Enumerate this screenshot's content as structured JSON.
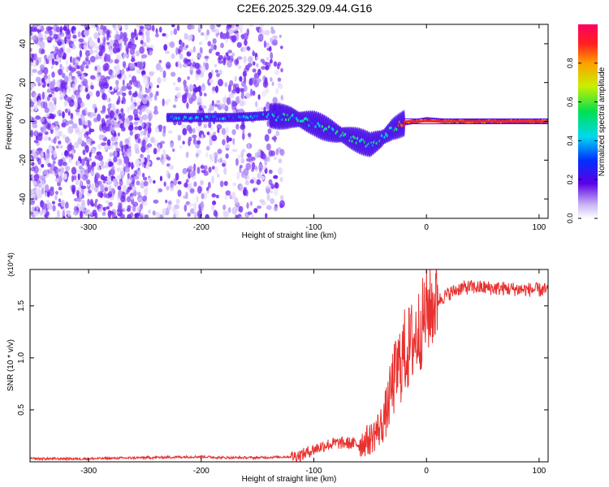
{
  "title": "C2E6.2025.329.09.44.G16",
  "chart_data": [
    {
      "type": "heatmap",
      "xlabel": "Height of straight line (km)",
      "ylabel": "Frequency (Hz)",
      "xlim": [
        -352,
        108
      ],
      "ylim": [
        -50,
        50
      ],
      "x_ticks": [
        -300,
        -200,
        -100,
        0,
        100
      ],
      "y_ticks": [
        -40,
        -20,
        0,
        20,
        40
      ],
      "colorbar": {
        "label": "Normalized spectral amplitude",
        "range": [
          0,
          1
        ],
        "ticks": [
          "0.0",
          "0.2",
          "0.4",
          "0.6",
          "0.8"
        ]
      },
      "ridge_frequency_hz": {
        "x": [
          -230,
          -200,
          -170,
          -140,
          -120,
          -100,
          -80,
          -60,
          -50,
          -40,
          -30,
          -20,
          -10,
          0,
          20,
          50,
          80,
          108
        ],
        "y": [
          2,
          2,
          2,
          3,
          2,
          -1,
          -6,
          -10,
          -12,
          -9,
          -4,
          -1,
          0,
          1,
          0,
          0,
          0,
          0
        ]
      }
    },
    {
      "type": "line",
      "xlabel": "Height of straight line (km)",
      "ylabel": "SNR (10 * v/v)",
      "y_multiplier_label": "(x10^4)",
      "xlim": [
        -352,
        108
      ],
      "ylim": [
        0,
        1.85
      ],
      "x_ticks": [
        -300,
        -200,
        -100,
        0,
        100
      ],
      "y_ticks": [
        0.5,
        1.0,
        1.5
      ],
      "y_tick_labels": [
        "0.5",
        "1.0",
        "1.5"
      ],
      "series": [
        {
          "color": "#e8312f",
          "x": [
            -352,
            -300,
            -250,
            -200,
            -180,
            -150,
            -120,
            -110,
            -100,
            -90,
            -80,
            -70,
            -60,
            -50,
            -40,
            -35,
            -30,
            -25,
            -20,
            -15,
            -10,
            -5,
            0,
            10,
            20,
            30,
            40,
            60,
            80,
            108
          ],
          "y": [
            0.03,
            0.03,
            0.04,
            0.05,
            0.04,
            0.04,
            0.05,
            0.07,
            0.12,
            0.16,
            0.18,
            0.18,
            0.17,
            0.22,
            0.35,
            0.5,
            0.75,
            0.9,
            1.05,
            1.1,
            1.2,
            1.3,
            1.45,
            1.55,
            1.62,
            1.67,
            1.68,
            1.67,
            1.66,
            1.65
          ]
        }
      ]
    }
  ]
}
